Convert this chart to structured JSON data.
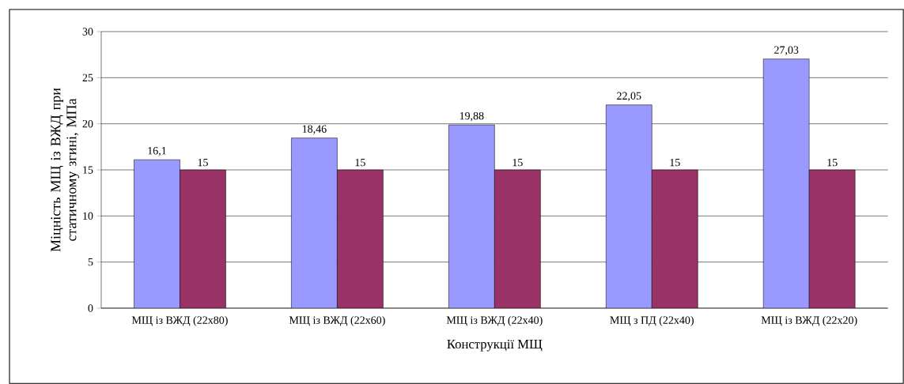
{
  "chart_data": {
    "type": "bar",
    "xlabel": "Конструкції МЩ",
    "ylabel": "Міцність МЩ із ВЖД при статичному згині, МПа",
    "categories": [
      "МЩ із ВЖД (22x80)",
      "МЩ із ВЖД (22x60)",
      "МЩ із ВЖД (22x40)",
      "МЩ з ПД (22x40)",
      "МЩ із ВЖД (22x20)"
    ],
    "series": [
      {
        "color": "#9999ff",
        "values": [
          16.1,
          18.46,
          19.88,
          22.05,
          27.03
        ],
        "value_labels": [
          "16,1",
          "18,46",
          "19,88",
          "22,05",
          "27,03"
        ]
      },
      {
        "color": "#993366",
        "values": [
          15,
          15,
          15,
          15,
          15
        ],
        "value_labels": [
          "15",
          "15",
          "15",
          "15",
          "15"
        ]
      }
    ],
    "ylim": [
      0,
      30
    ],
    "yticks": [
      0,
      5,
      10,
      15,
      20,
      25,
      30
    ],
    "grid": "y"
  }
}
